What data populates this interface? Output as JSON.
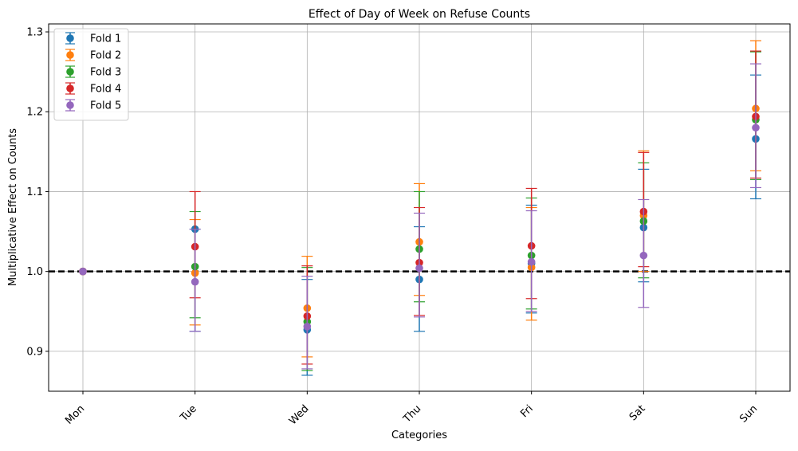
{
  "chart_data": {
    "type": "scatter",
    "title": "Effect of Day of Week on Refuse Counts",
    "xlabel": "Categories",
    "ylabel": "Multiplicative Effect on Counts",
    "categories": [
      "Mon",
      "Tue",
      "Wed",
      "Thu",
      "Fri",
      "Sat",
      "Sun"
    ],
    "ylim": [
      0.85,
      1.31
    ],
    "yticks": [
      0.9,
      1.0,
      1.1,
      1.2,
      1.3
    ],
    "ytick_labels": [
      "0.9",
      "1.0",
      "1.1",
      "1.2",
      "1.3"
    ],
    "reference_line": 1.0,
    "grid": true,
    "legend_position": "top-left",
    "error_bars": true,
    "series": [
      {
        "name": "Fold 1",
        "color": "#1f77b4",
        "values": [
          1.0,
          1.053,
          0.927,
          0.99,
          1.01,
          1.055,
          1.166
        ],
        "lower": [
          1.0,
          0.925,
          0.87,
          0.925,
          0.948,
          0.987,
          1.091
        ],
        "upper": [
          1.0,
          1.053,
          0.99,
          1.056,
          1.083,
          1.128,
          1.246
        ]
      },
      {
        "name": "Fold 2",
        "color": "#ff7f0e",
        "values": [
          1.0,
          0.998,
          0.954,
          1.037,
          1.005,
          1.07,
          1.204
        ],
        "lower": [
          1.0,
          0.933,
          0.893,
          0.97,
          0.939,
          1.0,
          1.126
        ],
        "upper": [
          1.0,
          1.065,
          1.019,
          1.11,
          1.08,
          1.151,
          1.289
        ]
      },
      {
        "name": "Fold 3",
        "color": "#2ca02c",
        "values": [
          1.0,
          1.006,
          0.937,
          1.028,
          1.02,
          1.063,
          1.19
        ],
        "lower": [
          1.0,
          0.942,
          0.876,
          0.962,
          0.953,
          0.992,
          1.115
        ],
        "upper": [
          1.0,
          1.075,
          1.005,
          1.1,
          1.092,
          1.136,
          1.275
        ]
      },
      {
        "name": "Fold 4",
        "color": "#d62728",
        "values": [
          1.0,
          1.031,
          0.944,
          1.011,
          1.032,
          1.075,
          1.194
        ],
        "lower": [
          1.0,
          0.967,
          0.884,
          0.945,
          0.966,
          1.006,
          1.117
        ],
        "upper": [
          1.0,
          1.1,
          1.007,
          1.08,
          1.104,
          1.149,
          1.276
        ]
      },
      {
        "name": "Fold 5",
        "color": "#9467bd",
        "values": [
          1.0,
          0.987,
          0.931,
          1.004,
          1.012,
          1.02,
          1.18
        ],
        "lower": [
          1.0,
          0.925,
          0.878,
          0.943,
          0.95,
          0.955,
          1.105
        ],
        "upper": [
          1.0,
          1.053,
          0.994,
          1.073,
          1.076,
          1.09,
          1.26
        ]
      }
    ]
  }
}
